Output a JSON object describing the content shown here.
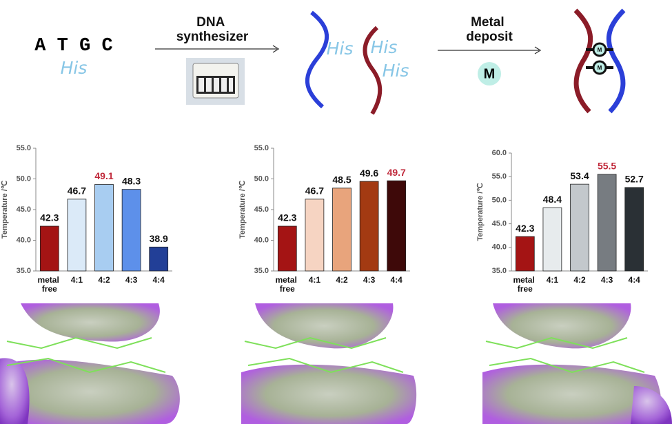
{
  "diagram": {
    "sequence": "A T G C",
    "his_label": "His",
    "step1": "DNA synthesizer",
    "his_strand_1": "His",
    "his_strand_2a": "His",
    "his_strand_2b": "His",
    "step2": "Metal deposit",
    "metal_symbol": "M",
    "complex_symbol_1": "M",
    "complex_symbol_2": "M"
  },
  "chart_data": [
    {
      "type": "bar",
      "y_label": "Temperature /℃",
      "categories": [
        "metal free",
        "4:1",
        "4:2",
        "4:3",
        "4:4"
      ],
      "values": [
        42.3,
        46.7,
        49.1,
        48.3,
        38.9
      ],
      "colors": [
        "#a41414",
        "#dbeaf8",
        "#a8cdf1",
        "#5d90ea",
        "#223f97"
      ],
      "value_label_colors": [
        "#111111",
        "#111111",
        "#c0283a",
        "#111111",
        "#111111"
      ],
      "ylim": [
        35,
        55
      ],
      "yticks": [
        {
          "value": 35,
          "label": "35.0"
        },
        {
          "value": 40,
          "label": "40.0"
        },
        {
          "value": 45,
          "label": "45.0"
        },
        {
          "value": 50,
          "label": "50.0"
        },
        {
          "value": 55,
          "label": "55.0"
        }
      ]
    },
    {
      "type": "bar",
      "y_label": "Temperature /℃",
      "categories": [
        "metal free",
        "4:1",
        "4:2",
        "4:3",
        "4:4"
      ],
      "values": [
        42.3,
        46.7,
        48.5,
        49.6,
        49.7
      ],
      "colors": [
        "#a41414",
        "#f6d4c2",
        "#e8a47c",
        "#a33a12",
        "#3e0909"
      ],
      "value_label_colors": [
        "#111111",
        "#111111",
        "#111111",
        "#111111",
        "#c0283a"
      ],
      "ylim": [
        35,
        55
      ],
      "yticks": [
        {
          "value": 35,
          "label": "35.0"
        },
        {
          "value": 40,
          "label": "40.0"
        },
        {
          "value": 45,
          "label": "45.0"
        },
        {
          "value": 50,
          "label": "50.0"
        },
        {
          "value": 55,
          "label": "55.0"
        }
      ]
    },
    {
      "type": "bar",
      "y_label": "Temperature /℃",
      "categories": [
        "metal free",
        "4:1",
        "4:2",
        "4:3",
        "4:4"
      ],
      "values": [
        42.3,
        48.4,
        53.4,
        55.5,
        52.7
      ],
      "colors": [
        "#a41414",
        "#e7ebed",
        "#c3c8cc",
        "#777c81",
        "#2a3035"
      ],
      "value_label_colors": [
        "#111111",
        "#111111",
        "#111111",
        "#c0283a",
        "#111111"
      ],
      "ylim": [
        35,
        60
      ],
      "yticks": [
        {
          "value": 35,
          "label": "35.0"
        },
        {
          "value": 40,
          "label": "40.0"
        },
        {
          "value": 45,
          "label": "45.0"
        },
        {
          "value": 50,
          "label": "50.0"
        },
        {
          "value": 55,
          "label": "55.0"
        },
        {
          "value": 60,
          "label": "60.0"
        }
      ]
    }
  ]
}
